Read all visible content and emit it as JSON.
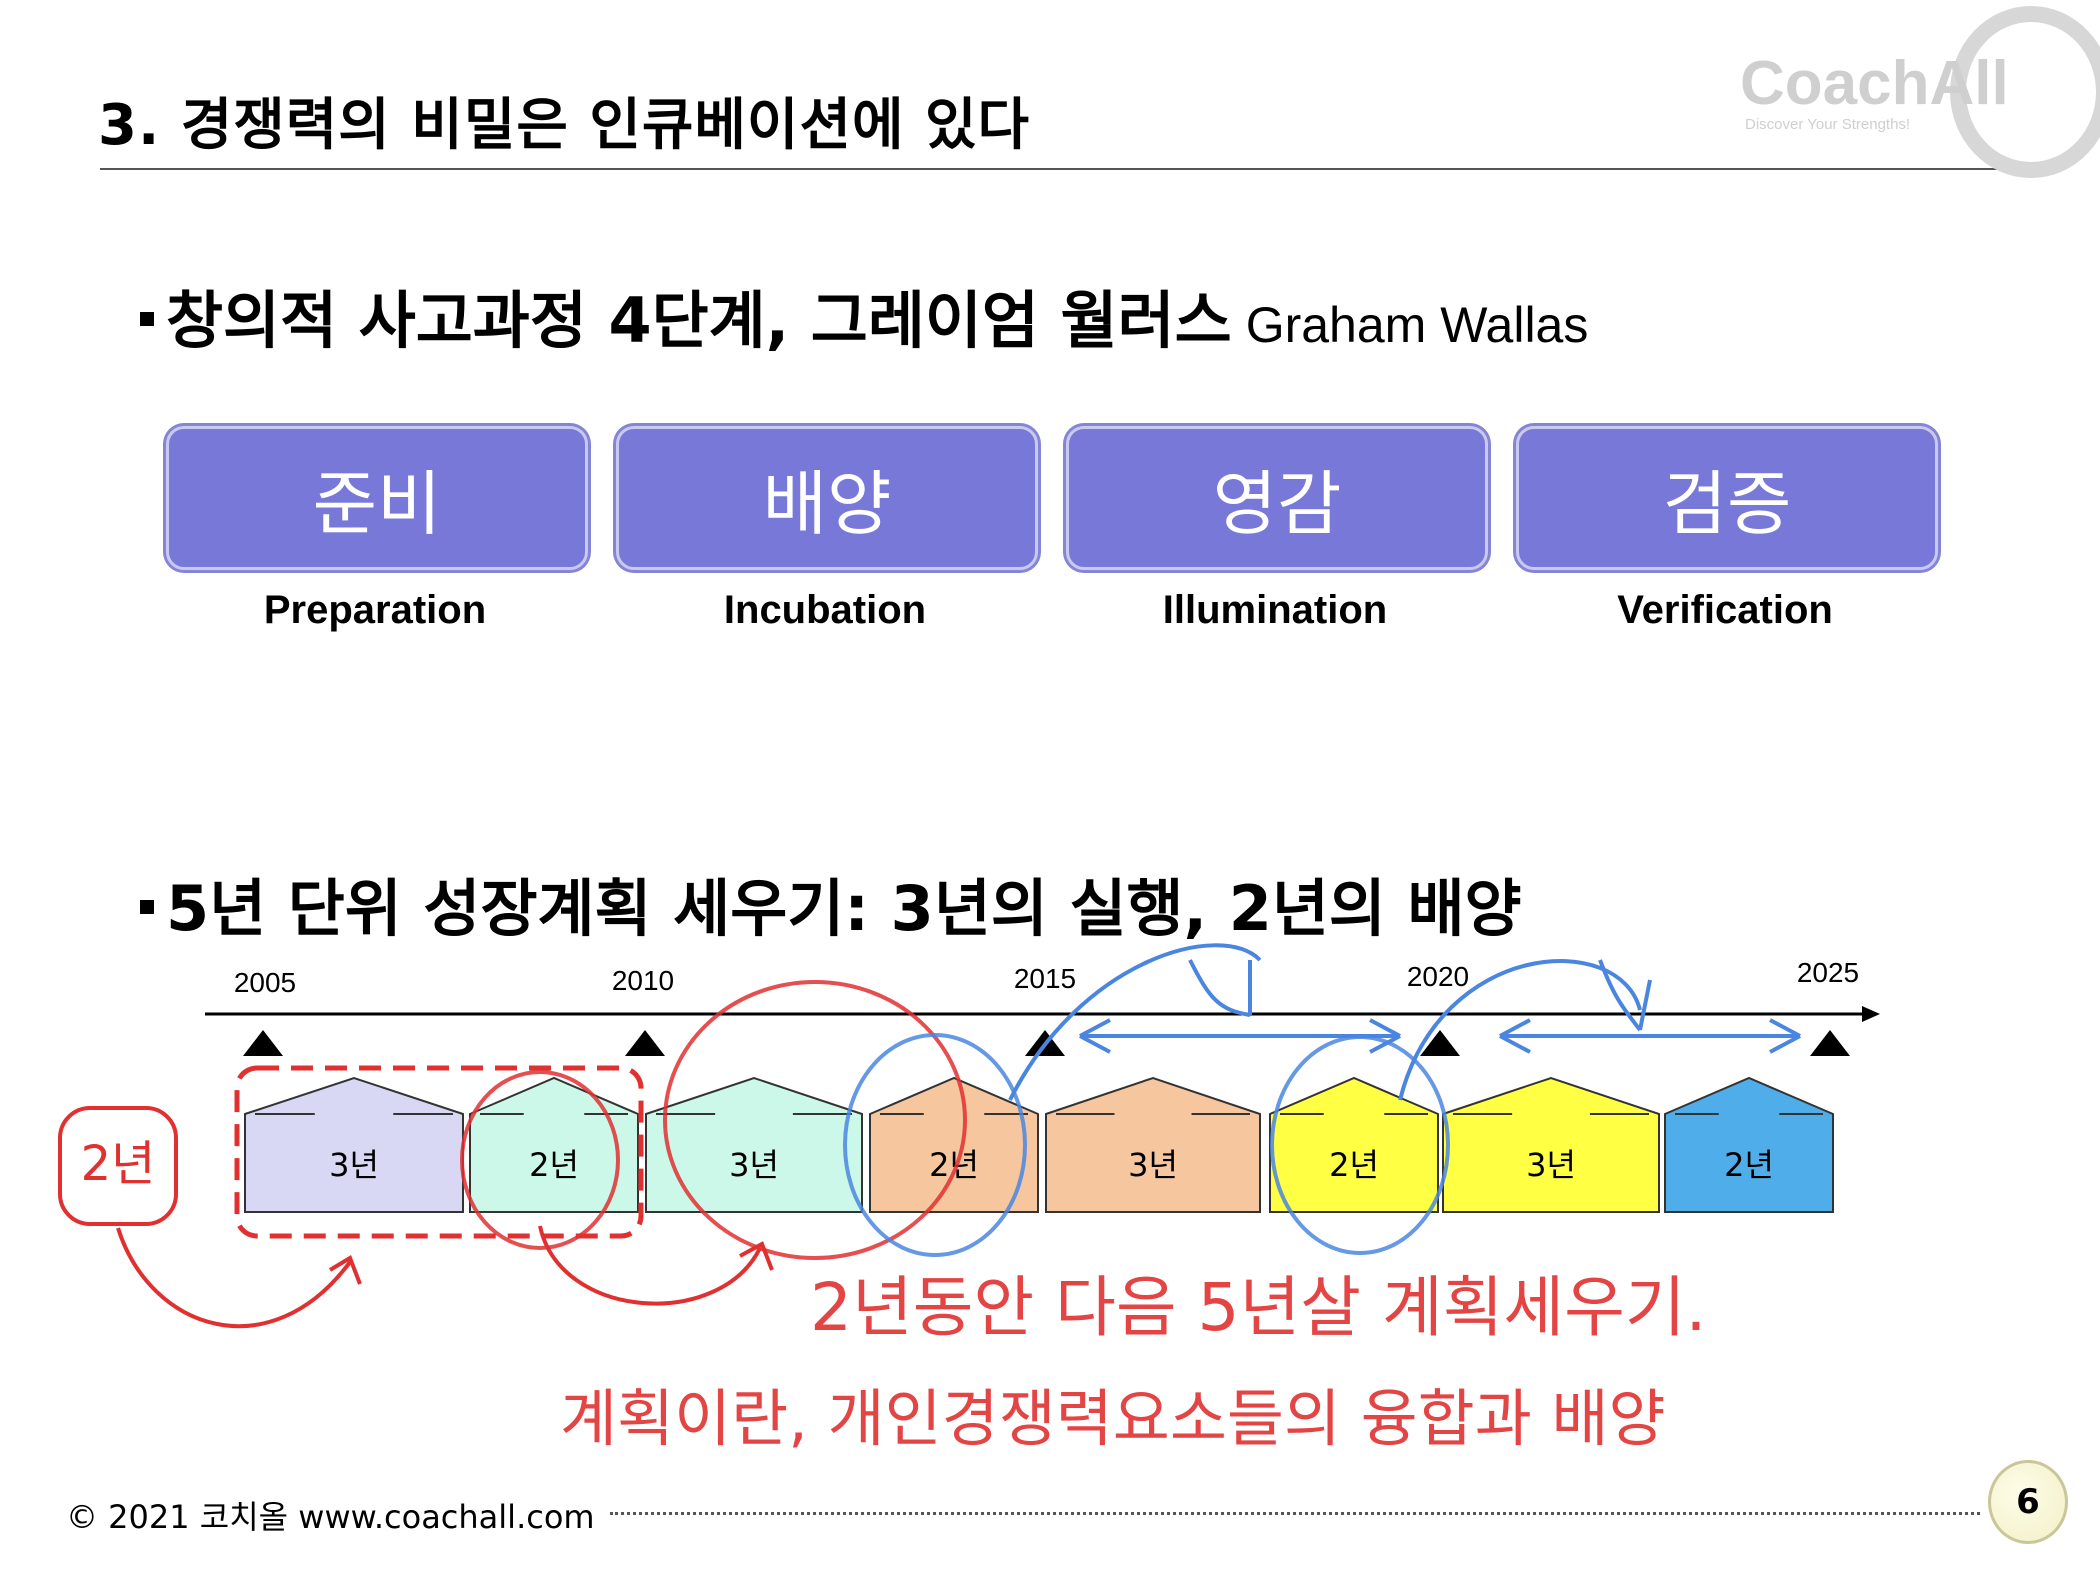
{
  "header": {
    "title": "3. 경쟁력의 비밀은 인큐베이션에 있다"
  },
  "logo": {
    "name": "CoachAll",
    "tagline": "Discover Your Strengths!"
  },
  "section1": {
    "heading": "창의적 사고과정 4단계, 그레이엄 월러스",
    "heading_latin": "Graham Wallas",
    "stages": [
      {
        "ko": "준비",
        "en": "Preparation"
      },
      {
        "ko": "배양",
        "en": "Incubation"
      },
      {
        "ko": "영감",
        "en": "Illumination"
      },
      {
        "ko": "검증",
        "en": "Verification"
      }
    ],
    "stage_color": "#7878d8"
  },
  "section2": {
    "heading": "5년 단위 성장계획 세우기: 3년의 실행, 2년의 배양",
    "years": [
      "2005",
      "2010",
      "2015",
      "2020",
      "2025"
    ],
    "blocks": [
      {
        "label": "3년",
        "color": "#d8d8f4"
      },
      {
        "label": "2년",
        "color": "#ccf8ea"
      },
      {
        "label": "3년",
        "color": "#ccf8ea"
      },
      {
        "label": "2년",
        "color": "#f6c79f"
      },
      {
        "label": "3년",
        "color": "#f6c79f"
      },
      {
        "label": "2년",
        "color": "#ffff44"
      },
      {
        "label": "3년",
        "color": "#ffff44"
      },
      {
        "label": "2년",
        "color": "#4faeea"
      }
    ]
  },
  "annotations": {
    "note_left": "2년",
    "note_line1": "2년동안 다음 5년살 계획세우기.",
    "note_line2": "계획이란, 개인경쟁력요소들의 융합과 배양",
    "ink_red": "#e03030",
    "ink_blue": "#4a86e0"
  },
  "footer": {
    "text": "© 2021 코치올 www.coachall.com",
    "page": "6"
  }
}
